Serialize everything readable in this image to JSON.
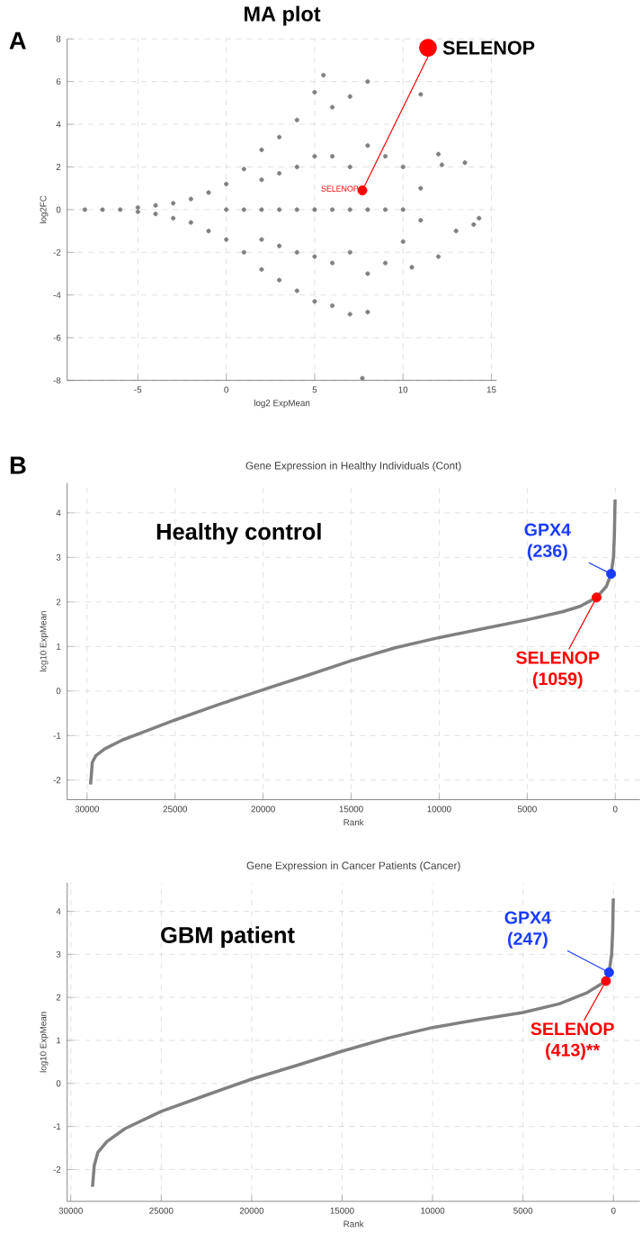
{
  "chart_data": [
    {
      "type": "scatter",
      "title": "MA plot",
      "xlabel": "log2 ExpMean",
      "ylabel": "log2FC",
      "xlim": [
        -9,
        15.3
      ],
      "ylim": [
        -8,
        8
      ],
      "xticks": [
        -5,
        0,
        5,
        10,
        15
      ],
      "yticks": [
        -8,
        -6,
        -4,
        -2,
        0,
        2,
        4,
        6,
        8
      ],
      "grid": true,
      "marker": "circle",
      "series": [
        {
          "color": "#808080",
          "x": [
            -8,
            -7,
            -6,
            -5,
            -5,
            -4,
            -4,
            -3,
            -3,
            -2,
            -2,
            -1,
            -1,
            0,
            0,
            0,
            1,
            1,
            1,
            2,
            2,
            2,
            2,
            2,
            3,
            3,
            3,
            3,
            3,
            4,
            4,
            4,
            4,
            4,
            5,
            5,
            5,
            5,
            5,
            5.5,
            6,
            6,
            6,
            6,
            6,
            7,
            7,
            7,
            7,
            7,
            8,
            8,
            8,
            8,
            8,
            9,
            9,
            9,
            10,
            10,
            10,
            10.5,
            11,
            11,
            11,
            12,
            12,
            12.2,
            13,
            13.5,
            14,
            14.3,
            7.7
          ],
          "values": [
            0,
            0,
            0,
            0.1,
            -0.1,
            0.2,
            -0.2,
            0.3,
            -0.4,
            0.5,
            -0.6,
            0.8,
            -1,
            1.2,
            -1.4,
            0,
            1.9,
            -2,
            0,
            2.8,
            -2.8,
            0,
            1.4,
            -1.4,
            3.4,
            -3.3,
            0,
            1.7,
            -1.7,
            4.2,
            -3.8,
            0,
            2,
            -2,
            5.5,
            -4.3,
            0,
            2.5,
            -2.2,
            6.3,
            4.8,
            -4.5,
            0,
            2.5,
            -2.5,
            5.3,
            -4.9,
            0,
            2,
            -2,
            6,
            3,
            -3,
            0,
            -4.8,
            2.5,
            -2.5,
            0,
            2,
            -1.5,
            0,
            -2.7,
            1,
            -0.5,
            5.4,
            2.6,
            -2.2,
            2.1,
            -1,
            2.2,
            -0.7,
            -0.4,
            -7.9
          ]
        },
        {
          "color": "#ff0000",
          "x": [
            7.7
          ],
          "values": [
            0.9
          ]
        }
      ],
      "annotations": [
        "A",
        {
          "text": "SELENOP",
          "x": 7.7,
          "y": 0.9
        },
        {
          "text": "SELENOP",
          "x": 7.7,
          "y": 0.9
        }
      ]
    },
    {
      "type": "line",
      "title": "Gene Expression in Healthy Individuals (Cont)",
      "xlabel": "Rank",
      "ylabel": "log10 ExpMean",
      "xlim": [
        31130,
        -1400
      ],
      "ylim": [
        -2.44,
        4.67
      ],
      "xticks": [
        30000,
        25000,
        20000,
        15000,
        10000,
        5000,
        0
      ],
      "yticks": [
        -2,
        -1,
        0,
        1,
        2,
        3,
        4
      ],
      "grid": true,
      "series": [
        {
          "type": "line",
          "color": "#808080",
          "x": [
            29800,
            29700,
            29500,
            29000,
            28000,
            27000,
            25000,
            22500,
            20000,
            17500,
            15000,
            12500,
            10000,
            7500,
            5000,
            3000,
            2000,
            1059,
            500,
            236,
            100,
            50,
            10
          ],
          "values": [
            -2.1,
            -1.6,
            -1.45,
            -1.3,
            -1.1,
            -0.95,
            -0.65,
            -0.3,
            0.03,
            0.35,
            0.68,
            0.97,
            1.2,
            1.4,
            1.6,
            1.78,
            1.9,
            2.1,
            2.35,
            2.63,
            3.0,
            3.5,
            4.3
          ]
        },
        {
          "type": "scatter",
          "marker": "circle",
          "color": "#ff0000",
          "x": [
            1059
          ],
          "values": [
            2.1
          ]
        },
        {
          "type": "scatter",
          "marker": "circle",
          "color": "#1a3cff",
          "x": [
            236
          ],
          "values": [
            2.63
          ]
        }
      ],
      "annotations": [
        "B",
        "Healthy control",
        {
          "text": "GPX4 (236)",
          "x": 236,
          "y": 2.63
        },
        {
          "text": "SELENOP (1059)",
          "x": 1059,
          "y": 2.1
        }
      ]
    },
    {
      "type": "line",
      "title": "Gene Expression in Cancer Patients (Cancer)",
      "xlabel": "Rank",
      "ylabel": "log10 ExpMean",
      "xlim": [
        30200,
        -1460
      ],
      "ylim": [
        -2.74,
        4.66
      ],
      "xticks": [
        30000,
        25000,
        20000,
        15000,
        10000,
        5000,
        0
      ],
      "yticks": [
        -2,
        -1,
        0,
        1,
        2,
        3,
        4
      ],
      "grid": true,
      "series": [
        {
          "type": "line",
          "color": "#808080",
          "x": [
            28800,
            28700,
            28500,
            28000,
            27000,
            25000,
            22500,
            20000,
            17500,
            15000,
            12500,
            10000,
            7500,
            5000,
            3000,
            1500,
            413,
            247,
            100,
            40,
            10
          ],
          "values": [
            -2.4,
            -1.9,
            -1.6,
            -1.35,
            -1.05,
            -0.65,
            -0.27,
            0.1,
            0.42,
            0.75,
            1.05,
            1.3,
            1.48,
            1.65,
            1.85,
            2.1,
            2.38,
            2.58,
            3.0,
            3.6,
            4.3
          ]
        },
        {
          "type": "scatter",
          "marker": "circle",
          "color": "#ff0000",
          "x": [
            413
          ],
          "values": [
            2.38
          ]
        },
        {
          "type": "scatter",
          "marker": "circle",
          "color": "#1a3cff",
          "x": [
            247
          ],
          "values": [
            2.58
          ]
        }
      ],
      "annotations": [
        "GBM patient",
        {
          "text": "GPX4 (247)",
          "x": 247,
          "y": 2.58
        },
        {
          "text": "SELENOP (413)**",
          "x": 413,
          "y": 2.38
        }
      ]
    }
  ]
}
